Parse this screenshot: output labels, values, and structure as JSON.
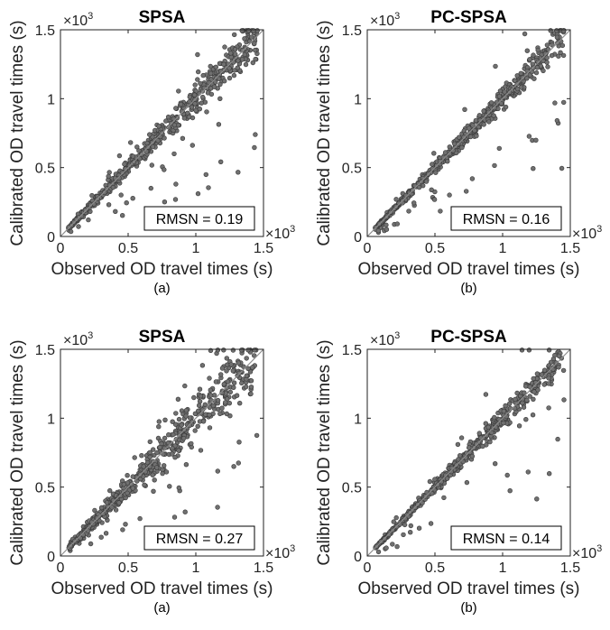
{
  "figure": {
    "colors": {
      "point_fill": "#707070",
      "point_stroke": "#3a3a3a",
      "axis": "#222222",
      "diagonal": "#8c8c8c"
    },
    "multiplier_label": "×10",
    "multiplier_exponent": "3"
  },
  "chart_data": [
    {
      "type": "scatter",
      "title": "SPSA",
      "xlabel": "Observed OD travel times (s)",
      "ylabel": "Calibrated OD travel times (s)",
      "caption": "(a)",
      "annotation": "RMSN = 0.19",
      "xlim": [
        0,
        1500
      ],
      "ylim": [
        0,
        1500
      ],
      "xticks": [
        "0",
        "0.5",
        "1",
        "1.5"
      ],
      "yticks": [
        "0",
        "0.5",
        "1",
        "1.5"
      ],
      "reference_line": "y = x",
      "n_points": 620,
      "spread": 0.085,
      "outlier_rate": 0.05,
      "seed": 11
    },
    {
      "type": "scatter",
      "title": "PC-SPSA",
      "xlabel": "Observed OD travel times (s)",
      "ylabel": "Calibrated OD travel times (s)",
      "caption": "(b)",
      "annotation": "RMSN = 0.16",
      "xlim": [
        0,
        1500
      ],
      "ylim": [
        0,
        1500
      ],
      "xticks": [
        "0",
        "0.5",
        "1",
        "1.5"
      ],
      "yticks": [
        "0",
        "0.5",
        "1",
        "1.5"
      ],
      "reference_line": "y = x",
      "n_points": 620,
      "spread": 0.06,
      "outlier_rate": 0.045,
      "seed": 23
    },
    {
      "type": "scatter",
      "title": "SPSA",
      "xlabel": "Observed OD travel times (s)",
      "ylabel": "Calibrated OD travel times (s)",
      "caption": "(a)",
      "annotation": "RMSN = 0.27",
      "xlim": [
        0,
        1500
      ],
      "ylim": [
        0,
        1500
      ],
      "xticks": [
        "0",
        "0.5",
        "1",
        "1.5"
      ],
      "yticks": [
        "0",
        "0.5",
        "1",
        "1.5"
      ],
      "reference_line": "y = x",
      "n_points": 620,
      "spread": 0.12,
      "outlier_rate": 0.06,
      "seed": 37
    },
    {
      "type": "scatter",
      "title": "PC-SPSA",
      "xlabel": "Observed OD travel times (s)",
      "ylabel": "Calibrated OD travel times (s)",
      "caption": "(b)",
      "annotation": "RMSN = 0.14",
      "xlim": [
        0,
        1500
      ],
      "ylim": [
        0,
        1500
      ],
      "xticks": [
        "0",
        "0.5",
        "1",
        "1.5"
      ],
      "yticks": [
        "0",
        "0.5",
        "1",
        "1.5"
      ],
      "reference_line": "y = x",
      "n_points": 620,
      "spread": 0.055,
      "outlier_rate": 0.04,
      "seed": 53
    }
  ]
}
